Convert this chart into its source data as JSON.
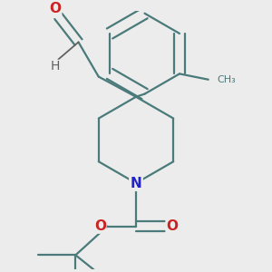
{
  "bg_color": "#ececec",
  "bond_color": "#4a7a7a",
  "bond_width": 1.6,
  "atom_colors": {
    "N": "#2222cc",
    "O": "#cc2222",
    "H": "#606060",
    "C": "#4a7a7a"
  },
  "font_size_atom": 10,
  "figsize": [
    3.0,
    3.0
  ],
  "dpi": 100
}
